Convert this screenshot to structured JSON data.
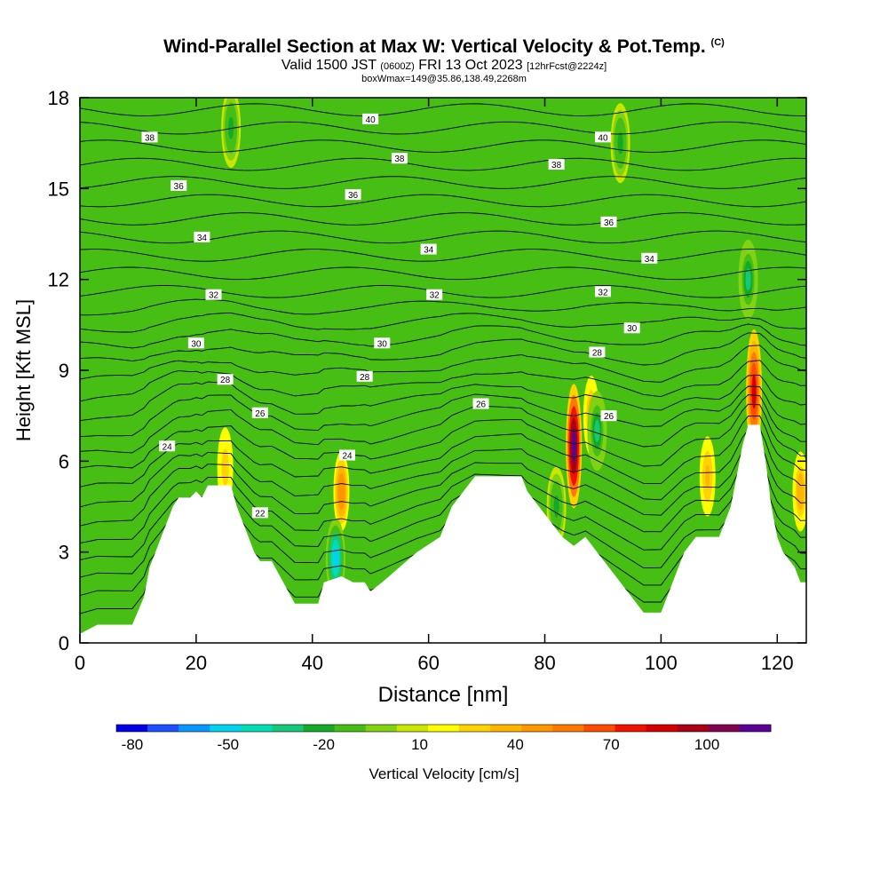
{
  "header": {
    "title": "Wind-Parallel Section at Max W: Vertical Velocity & Pot.Temp.",
    "copyright": "(C)",
    "valid_prefix": "Valid 1500 JST",
    "valid_utc": "(0600Z)",
    "valid_date": "FRI 13 Oct 2023",
    "forecast": "[12hrFcst@2224z]",
    "box_info": "boxWmax=149@35.86,138.49,2268m"
  },
  "chart_data": {
    "type": "heatmap",
    "title": "Wind-Parallel Section at Max W: Vertical Velocity & Pot.Temp.",
    "xlabel": "Distance [nm]",
    "ylabel": "Height [Kft MSL]",
    "xlim": [
      0,
      125
    ],
    "ylim": [
      0,
      18
    ],
    "xticks": [
      0,
      20,
      40,
      60,
      80,
      100,
      120
    ],
    "yticks": [
      0,
      3,
      6,
      9,
      12,
      15,
      18
    ],
    "grid": false,
    "colorbar": {
      "label": "Vertical Velocity [cm/s]",
      "min": -85,
      "max": 120,
      "tick_values": [
        -80,
        -50,
        -20,
        10,
        40,
        70,
        100
      ],
      "colors": [
        "#0000e6",
        "#1e50ff",
        "#0a96ff",
        "#00d2f0",
        "#00dcb4",
        "#14c878",
        "#14aa28",
        "#46be14",
        "#82d214",
        "#c8e600",
        "#ffff00",
        "#ffd200",
        "#ffb400",
        "#ff9600",
        "#ff7800",
        "#ff4b00",
        "#f01400",
        "#d20000",
        "#aa0014",
        "#820050",
        "#5a0096"
      ]
    },
    "terrain_height_kft": [
      {
        "x": 0,
        "h": 0.3
      },
      {
        "x": 3,
        "h": 0.6
      },
      {
        "x": 6,
        "h": 0.6
      },
      {
        "x": 9,
        "h": 0.6
      },
      {
        "x": 11,
        "h": 1.5
      },
      {
        "x": 12,
        "h": 2.5
      },
      {
        "x": 13,
        "h": 3.0
      },
      {
        "x": 14,
        "h": 3.5
      },
      {
        "x": 15,
        "h": 4.0
      },
      {
        "x": 16,
        "h": 4.5
      },
      {
        "x": 17,
        "h": 4.8
      },
      {
        "x": 19,
        "h": 4.8
      },
      {
        "x": 20,
        "h": 5.0
      },
      {
        "x": 21,
        "h": 4.8
      },
      {
        "x": 22,
        "h": 5.2
      },
      {
        "x": 24,
        "h": 5.2
      },
      {
        "x": 26,
        "h": 5.2
      },
      {
        "x": 27,
        "h": 4.5
      },
      {
        "x": 28,
        "h": 4.0
      },
      {
        "x": 29,
        "h": 3.5
      },
      {
        "x": 30,
        "h": 3.0
      },
      {
        "x": 31,
        "h": 2.7
      },
      {
        "x": 33,
        "h": 2.7
      },
      {
        "x": 35,
        "h": 2.0
      },
      {
        "x": 37,
        "h": 1.3
      },
      {
        "x": 41,
        "h": 1.3
      },
      {
        "x": 42,
        "h": 2.0
      },
      {
        "x": 45,
        "h": 2.2
      },
      {
        "x": 47,
        "h": 2.0
      },
      {
        "x": 49,
        "h": 2.0
      },
      {
        "x": 50,
        "h": 1.7
      },
      {
        "x": 52,
        "h": 2.0
      },
      {
        "x": 55,
        "h": 2.5
      },
      {
        "x": 58,
        "h": 3.0
      },
      {
        "x": 62,
        "h": 3.5
      },
      {
        "x": 64,
        "h": 4.5
      },
      {
        "x": 66,
        "h": 5.0
      },
      {
        "x": 68,
        "h": 5.5
      },
      {
        "x": 76,
        "h": 5.5
      },
      {
        "x": 77,
        "h": 5.0
      },
      {
        "x": 79,
        "h": 4.5
      },
      {
        "x": 81,
        "h": 4.0
      },
      {
        "x": 83,
        "h": 3.5
      },
      {
        "x": 85,
        "h": 3.2
      },
      {
        "x": 87,
        "h": 3.5
      },
      {
        "x": 89,
        "h": 3.0
      },
      {
        "x": 91,
        "h": 2.5
      },
      {
        "x": 93,
        "h": 2.0
      },
      {
        "x": 95,
        "h": 1.5
      },
      {
        "x": 97,
        "h": 1.0
      },
      {
        "x": 100,
        "h": 1.0
      },
      {
        "x": 102,
        "h": 2.0
      },
      {
        "x": 104,
        "h": 3.0
      },
      {
        "x": 106,
        "h": 3.5
      },
      {
        "x": 110,
        "h": 3.5
      },
      {
        "x": 112,
        "h": 4.5
      },
      {
        "x": 113,
        "h": 5.5
      },
      {
        "x": 114,
        "h": 6.5
      },
      {
        "x": 115,
        "h": 7.2
      },
      {
        "x": 117,
        "h": 7.2
      },
      {
        "x": 118,
        "h": 6.0
      },
      {
        "x": 119,
        "h": 4.5
      },
      {
        "x": 120,
        "h": 3.5
      },
      {
        "x": 121,
        "h": 3.0
      },
      {
        "x": 123,
        "h": 2.5
      },
      {
        "x": 124,
        "h": 2.0
      },
      {
        "x": 125,
        "h": 2.0
      }
    ],
    "vertical_velocity_features_cm_s": [
      {
        "x": 85,
        "z": 6.5,
        "w": 115
      },
      {
        "x": 116,
        "z": 8.3,
        "w": 85
      },
      {
        "x": 45,
        "z": 5.0,
        "w": 50
      },
      {
        "x": 88,
        "z": 7.5,
        "w": 40
      },
      {
        "x": 25,
        "z": 5.8,
        "w": 30
      },
      {
        "x": 108,
        "z": 5.5,
        "w": 35
      },
      {
        "x": 124,
        "z": 5.0,
        "w": 40
      },
      {
        "x": 44,
        "z": 2.8,
        "w": -55
      },
      {
        "x": 89,
        "z": 7.0,
        "w": -30
      },
      {
        "x": 115,
        "z": 12.0,
        "w": -30
      },
      {
        "x": 82,
        "z": 4.5,
        "w": -20
      },
      {
        "x": 26,
        "z": 17.0,
        "w": -20
      },
      {
        "x": 93,
        "z": 16.5,
        "w": -20
      }
    ],
    "theta_contours": [
      {
        "label": "22",
        "positions": [
          [
            31,
            4.3
          ]
        ]
      },
      {
        "label": "24",
        "positions": [
          [
            15,
            6.5
          ],
          [
            46,
            6.2
          ]
        ]
      },
      {
        "label": "26",
        "positions": [
          [
            31,
            7.6
          ],
          [
            69,
            7.9
          ],
          [
            91,
            7.5
          ]
        ]
      },
      {
        "label": "28",
        "positions": [
          [
            25,
            8.7
          ],
          [
            49,
            8.8
          ],
          [
            89,
            9.6
          ]
        ]
      },
      {
        "label": "30",
        "positions": [
          [
            20,
            9.9
          ],
          [
            52,
            9.9
          ],
          [
            95,
            10.4
          ]
        ]
      },
      {
        "label": "32",
        "positions": [
          [
            23,
            11.5
          ],
          [
            61,
            11.5
          ],
          [
            90,
            11.6
          ]
        ]
      },
      {
        "label": "34",
        "positions": [
          [
            21,
            13.4
          ],
          [
            60,
            13.0
          ],
          [
            98,
            12.7
          ]
        ]
      },
      {
        "label": "36",
        "positions": [
          [
            17,
            15.1
          ],
          [
            47,
            14.8
          ],
          [
            91,
            13.9
          ]
        ]
      },
      {
        "label": "38",
        "positions": [
          [
            12,
            16.7
          ],
          [
            55,
            16.0
          ],
          [
            82,
            15.8
          ]
        ]
      },
      {
        "label": "40",
        "positions": [
          [
            50,
            17.3
          ],
          [
            90,
            16.7
          ]
        ]
      }
    ]
  }
}
